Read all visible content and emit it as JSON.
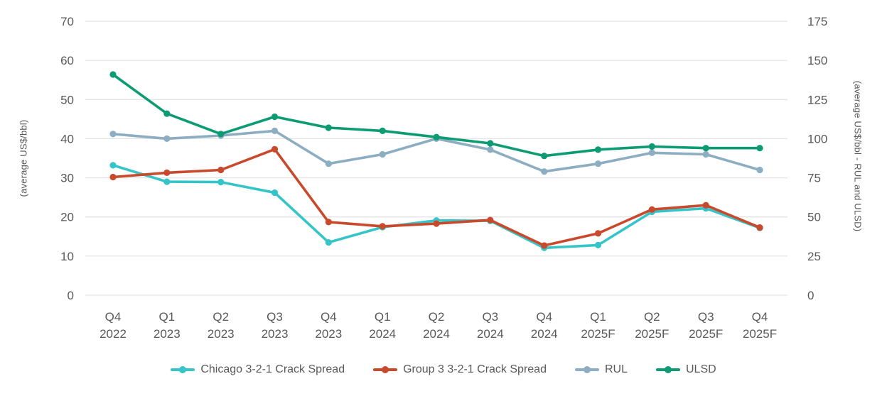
{
  "colors": {
    "text": "#595959",
    "grid": "#e4e4e4",
    "background": "#ffffff"
  },
  "chart_data": {
    "type": "line",
    "title": "",
    "grid": "horizontal",
    "legend_position": "bottom",
    "marker": "circle",
    "categories": [
      {
        "quarter": "Q4",
        "year": "2022"
      },
      {
        "quarter": "Q1",
        "year": "2023"
      },
      {
        "quarter": "Q2",
        "year": "2023"
      },
      {
        "quarter": "Q3",
        "year": "2023"
      },
      {
        "quarter": "Q4",
        "year": "2023"
      },
      {
        "quarter": "Q1",
        "year": "2024"
      },
      {
        "quarter": "Q2",
        "year": "2024"
      },
      {
        "quarter": "Q3",
        "year": "2024"
      },
      {
        "quarter": "Q4",
        "year": "2024"
      },
      {
        "quarter": "Q1",
        "year": "2025F"
      },
      {
        "quarter": "Q2",
        "year": "2025F"
      },
      {
        "quarter": "Q3",
        "year": "2025F"
      },
      {
        "quarter": "Q4",
        "year": "2025F"
      }
    ],
    "left_axis": {
      "label": "(average US$/bbl)",
      "min": 0,
      "max": 70,
      "ticks": [
        0,
        10,
        20,
        30,
        40,
        50,
        60,
        70
      ]
    },
    "right_axis": {
      "label": "(average US$/bbl - RUL and ULSD)",
      "min": 0,
      "max": 175,
      "ticks": [
        0,
        25,
        50,
        75,
        100,
        125,
        150,
        175
      ]
    },
    "series": [
      {
        "name": "Chicago 3-2-1 Crack Spread",
        "axis": "left",
        "color": "#35c5c8",
        "values": [
          33.2,
          29.0,
          28.9,
          26.2,
          13.5,
          17.4,
          19.1,
          19.0,
          12.1,
          12.8,
          21.3,
          22.2,
          17.2
        ]
      },
      {
        "name": "Group 3 3-2-1 Crack Spread",
        "axis": "left",
        "color": "#c8492c",
        "values": [
          30.2,
          31.3,
          32.0,
          37.3,
          18.7,
          17.6,
          18.3,
          19.2,
          12.7,
          15.8,
          21.9,
          23.0,
          17.3
        ]
      },
      {
        "name": "RUL",
        "axis": "right",
        "color": "#8cadc2",
        "values": [
          103,
          100,
          102,
          105,
          84,
          90,
          100,
          93,
          79,
          84,
          91,
          90,
          80
        ]
      },
      {
        "name": "ULSD",
        "axis": "right",
        "color": "#0c9b72",
        "values": [
          141,
          116,
          103,
          114,
          107,
          105,
          101,
          97,
          89,
          93,
          95,
          94,
          94
        ]
      }
    ]
  }
}
